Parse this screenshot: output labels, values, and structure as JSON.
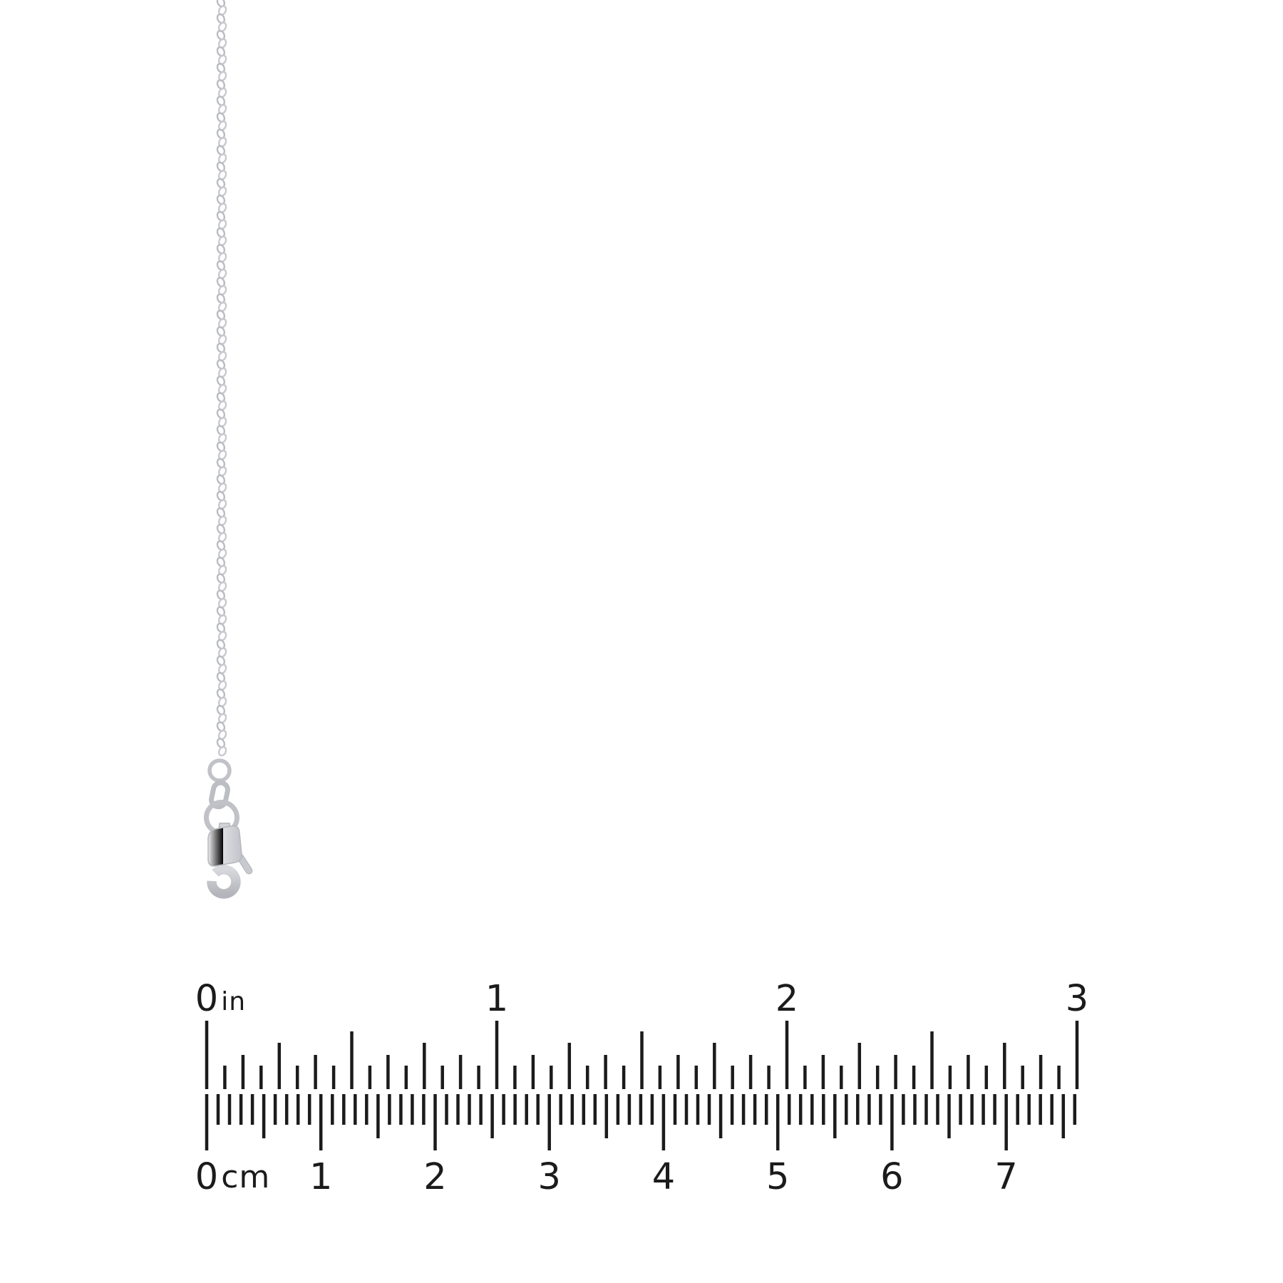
{
  "ruler": {
    "inch_scale": {
      "unit_label": "in",
      "numbers": [
        "0",
        "1",
        "2",
        "3"
      ],
      "subdivisions_per_unit": 16,
      "total_units": 3
    },
    "cm_scale": {
      "unit_label": "cm",
      "numbers": [
        "0",
        "1",
        "2",
        "3",
        "4",
        "5",
        "6",
        "7"
      ],
      "millimeter_tick_count": 77,
      "total_units": 7.6
    }
  },
  "colors": {
    "background": "#ffffff",
    "tick": "#1b1b1b",
    "label": "#1b1b1b",
    "metal_light": "#f2f2f4",
    "metal_mid": "#c4c6cc",
    "metal_dark": "#a9abb1"
  }
}
